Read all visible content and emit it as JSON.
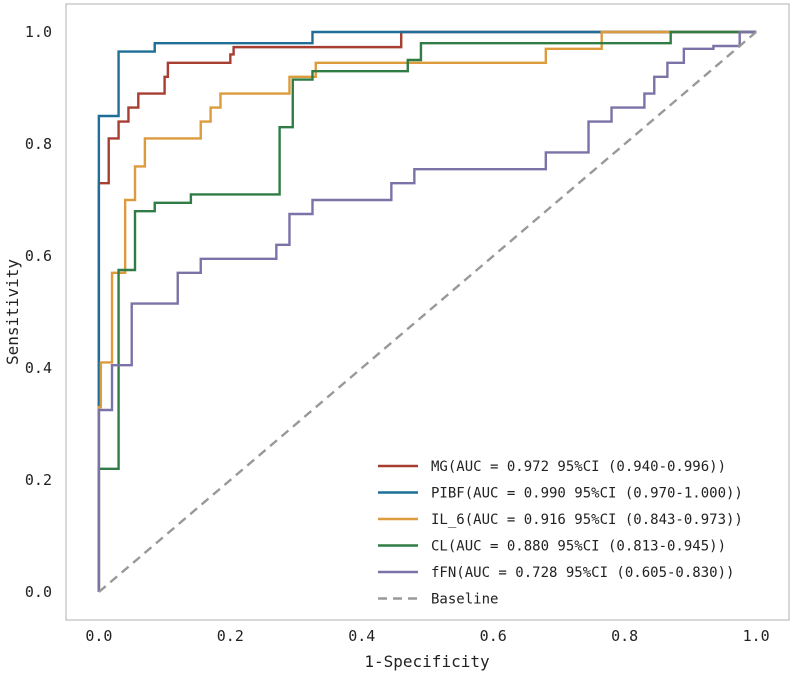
{
  "chart_data": {
    "type": "line",
    "title": "",
    "xlabel": "1-Specificity",
    "ylabel": "Sensitivity",
    "xlim": [
      -0.05,
      1.05
    ],
    "ylim": [
      -0.05,
      1.05
    ],
    "grid": false,
    "legend_position": "bottom-right",
    "x_ticks": [
      {
        "value": 0.0,
        "label": "0.0"
      },
      {
        "value": 0.2,
        "label": "0.2"
      },
      {
        "value": 0.4,
        "label": "0.4"
      },
      {
        "value": 0.6,
        "label": "0.6"
      },
      {
        "value": 0.8,
        "label": "0.8"
      },
      {
        "value": 1.0,
        "label": "1.0"
      }
    ],
    "y_ticks": [
      {
        "value": 0.0,
        "label": "0.0"
      },
      {
        "value": 0.2,
        "label": "0.2"
      },
      {
        "value": 0.4,
        "label": "0.4"
      },
      {
        "value": 0.6,
        "label": "0.6"
      },
      {
        "value": 0.8,
        "label": "0.8"
      },
      {
        "value": 1.0,
        "label": "1.0"
      }
    ],
    "series": [
      {
        "name": "MG",
        "legend": "MG(AUC = 0.972 95%CI (0.940-0.996))",
        "color": "#a83e32",
        "dash": false,
        "points": [
          [
            0,
            0
          ],
          [
            0,
            0.73
          ],
          [
            0.015,
            0.73
          ],
          [
            0.015,
            0.81
          ],
          [
            0.03,
            0.81
          ],
          [
            0.03,
            0.84
          ],
          [
            0.045,
            0.84
          ],
          [
            0.045,
            0.865
          ],
          [
            0.06,
            0.865
          ],
          [
            0.06,
            0.89
          ],
          [
            0.1,
            0.89
          ],
          [
            0.1,
            0.92
          ],
          [
            0.105,
            0.92
          ],
          [
            0.105,
            0.945
          ],
          [
            0.2,
            0.945
          ],
          [
            0.2,
            0.96
          ],
          [
            0.205,
            0.96
          ],
          [
            0.205,
            0.973
          ],
          [
            0.46,
            0.973
          ],
          [
            0.46,
            1.0
          ],
          [
            1.0,
            1.0
          ]
        ]
      },
      {
        "name": "PIBF",
        "legend": "PIBF(AUC = 0.990 95%CI (0.970-1.000))",
        "color": "#1f6e97",
        "dash": false,
        "points": [
          [
            0,
            0
          ],
          [
            0,
            0.85
          ],
          [
            0.03,
            0.85
          ],
          [
            0.03,
            0.965
          ],
          [
            0.085,
            0.965
          ],
          [
            0.085,
            0.98
          ],
          [
            0.325,
            0.98
          ],
          [
            0.325,
            1.0
          ],
          [
            1.0,
            1.0
          ]
        ]
      },
      {
        "name": "IL_6",
        "legend": "IL_6(AUC = 0.916 95%CI (0.843-0.973))",
        "color": "#dc9c3e",
        "dash": false,
        "points": [
          [
            0,
            0
          ],
          [
            0,
            0.33
          ],
          [
            0.003,
            0.33
          ],
          [
            0.003,
            0.41
          ],
          [
            0.02,
            0.41
          ],
          [
            0.02,
            0.57
          ],
          [
            0.04,
            0.57
          ],
          [
            0.04,
            0.7
          ],
          [
            0.055,
            0.7
          ],
          [
            0.055,
            0.76
          ],
          [
            0.07,
            0.76
          ],
          [
            0.07,
            0.81
          ],
          [
            0.155,
            0.81
          ],
          [
            0.155,
            0.84
          ],
          [
            0.17,
            0.84
          ],
          [
            0.17,
            0.865
          ],
          [
            0.185,
            0.865
          ],
          [
            0.185,
            0.89
          ],
          [
            0.29,
            0.89
          ],
          [
            0.29,
            0.92
          ],
          [
            0.33,
            0.92
          ],
          [
            0.33,
            0.945
          ],
          [
            0.465,
            0.945
          ],
          [
            0.465,
            0.945
          ],
          [
            0.68,
            0.945
          ],
          [
            0.68,
            0.97
          ],
          [
            0.765,
            0.97
          ],
          [
            0.765,
            1.0
          ],
          [
            1.0,
            1.0
          ]
        ]
      },
      {
        "name": "CL",
        "legend": "CL(AUC = 0.880 95%CI (0.813-0.945))",
        "color": "#2f7d45",
        "dash": false,
        "points": [
          [
            0,
            0
          ],
          [
            0,
            0.22
          ],
          [
            0.03,
            0.22
          ],
          [
            0.03,
            0.575
          ],
          [
            0.055,
            0.575
          ],
          [
            0.055,
            0.68
          ],
          [
            0.085,
            0.68
          ],
          [
            0.085,
            0.695
          ],
          [
            0.14,
            0.695
          ],
          [
            0.14,
            0.71
          ],
          [
            0.275,
            0.71
          ],
          [
            0.275,
            0.83
          ],
          [
            0.295,
            0.83
          ],
          [
            0.295,
            0.915
          ],
          [
            0.325,
            0.915
          ],
          [
            0.325,
            0.93
          ],
          [
            0.47,
            0.93
          ],
          [
            0.47,
            0.95
          ],
          [
            0.49,
            0.95
          ],
          [
            0.49,
            0.98
          ],
          [
            0.87,
            0.98
          ],
          [
            0.87,
            1.0
          ],
          [
            1.0,
            1.0
          ]
        ]
      },
      {
        "name": "fFN",
        "legend": "fFN(AUC = 0.728 95%CI (0.605-0.830))",
        "color": "#7b72a8",
        "dash": false,
        "points": [
          [
            0,
            0
          ],
          [
            0,
            0.325
          ],
          [
            0.02,
            0.325
          ],
          [
            0.02,
            0.405
          ],
          [
            0.05,
            0.405
          ],
          [
            0.05,
            0.515
          ],
          [
            0.12,
            0.515
          ],
          [
            0.12,
            0.57
          ],
          [
            0.155,
            0.57
          ],
          [
            0.155,
            0.595
          ],
          [
            0.27,
            0.595
          ],
          [
            0.27,
            0.62
          ],
          [
            0.29,
            0.62
          ],
          [
            0.29,
            0.675
          ],
          [
            0.325,
            0.675
          ],
          [
            0.325,
            0.7
          ],
          [
            0.445,
            0.7
          ],
          [
            0.445,
            0.73
          ],
          [
            0.48,
            0.73
          ],
          [
            0.48,
            0.755
          ],
          [
            0.68,
            0.755
          ],
          [
            0.68,
            0.785
          ],
          [
            0.745,
            0.785
          ],
          [
            0.745,
            0.84
          ],
          [
            0.78,
            0.84
          ],
          [
            0.78,
            0.865
          ],
          [
            0.83,
            0.865
          ],
          [
            0.83,
            0.89
          ],
          [
            0.845,
            0.89
          ],
          [
            0.845,
            0.92
          ],
          [
            0.865,
            0.92
          ],
          [
            0.865,
            0.945
          ],
          [
            0.89,
            0.945
          ],
          [
            0.89,
            0.97
          ],
          [
            0.935,
            0.97
          ],
          [
            0.935,
            0.975
          ],
          [
            0.975,
            0.975
          ],
          [
            0.975,
            1.0
          ],
          [
            1.0,
            1.0
          ]
        ]
      },
      {
        "name": "Baseline",
        "legend": "Baseline",
        "color": "#999999",
        "dash": true,
        "points": [
          [
            0,
            0
          ],
          [
            1,
            1
          ]
        ]
      }
    ]
  }
}
